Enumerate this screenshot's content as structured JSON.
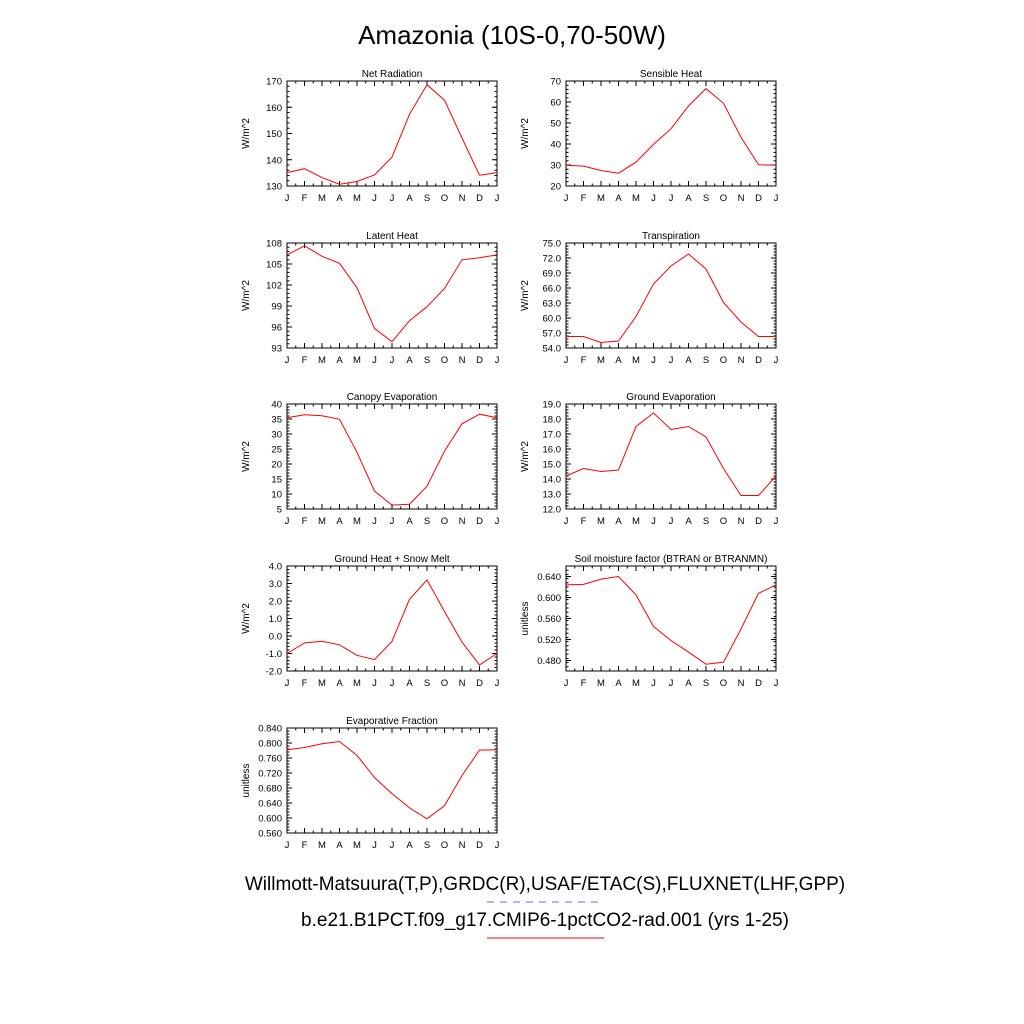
{
  "title": "Amazonia (10S-0,70-50W)",
  "footer": {
    "line1": "Willmott-Matsuura(T,P),GRDC(R),USAF/ETAC(S),FLUXNET(LHF,GPP)",
    "line2": "b.e21.B1PCT.f09_g17.CMIP6-1pctCO2-rad.001 (yrs 1-25)",
    "line1_legend_color": "#6b6bff",
    "line2_legend_color": "#ff0000"
  },
  "colors": {
    "series": "#ff0000",
    "axis": "#000000"
  },
  "chart_data": [
    {
      "type": "line",
      "title": "Net Radiation",
      "ylabel": "W/m^2",
      "categories": [
        "J",
        "F",
        "M",
        "A",
        "M",
        "J",
        "J",
        "A",
        "S",
        "O",
        "N",
        "D",
        "J"
      ],
      "ylim": [
        130,
        170
      ],
      "yticks": [
        "130",
        "140",
        "150",
        "160",
        "170"
      ],
      "values": [
        135.1,
        136.6,
        133.2,
        130.7,
        131.7,
        134.2,
        141,
        157.3,
        168.6,
        162.7,
        148.3,
        134.1,
        135.1
      ]
    },
    {
      "type": "line",
      "title": "Sensible Heat",
      "ylabel": "W/m^2",
      "categories": [
        "J",
        "F",
        "M",
        "A",
        "M",
        "J",
        "J",
        "A",
        "S",
        "O",
        "N",
        "D",
        "J"
      ],
      "ylim": [
        20,
        70
      ],
      "yticks": [
        "20",
        "30",
        "40",
        "50",
        "60",
        "70"
      ],
      "values": [
        29.9,
        29.5,
        27.4,
        26.1,
        31.4,
        39.8,
        47.3,
        58.1,
        66.4,
        59.4,
        43.2,
        30.1,
        29.9
      ]
    },
    {
      "type": "line",
      "title": "Latent Heat",
      "ylabel": "W/m^2",
      "categories": [
        "J",
        "F",
        "M",
        "A",
        "M",
        "J",
        "J",
        "A",
        "S",
        "O",
        "N",
        "D",
        "J"
      ],
      "ylim": [
        93,
        108
      ],
      "yticks": [
        "93",
        "96",
        "99",
        "102",
        "105",
        "108"
      ],
      "values": [
        106.3,
        107.6,
        106.1,
        105.1,
        101.6,
        95.8,
        93.9,
        96.9,
        98.9,
        101.5,
        105.6,
        105.9,
        106.3
      ]
    },
    {
      "type": "line",
      "title": "Transpiration",
      "ylabel": "W/m^2",
      "categories": [
        "J",
        "F",
        "M",
        "A",
        "M",
        "J",
        "J",
        "A",
        "S",
        "O",
        "N",
        "D",
        "J"
      ],
      "ylim": [
        54,
        75
      ],
      "yticks": [
        "54.0",
        "57.0",
        "60.0",
        "63.0",
        "66.0",
        "69.0",
        "72.0",
        "75.0"
      ],
      "values": [
        56.3,
        56.3,
        55.1,
        55.4,
        60.3,
        66.8,
        70.4,
        72.8,
        69.8,
        63.1,
        59.2,
        56.3,
        56.3
      ]
    },
    {
      "type": "line",
      "title": "Canopy Evaporation",
      "ylabel": "W/m^2",
      "categories": [
        "J",
        "F",
        "M",
        "A",
        "M",
        "J",
        "J",
        "A",
        "S",
        "O",
        "N",
        "D",
        "J"
      ],
      "ylim": [
        5,
        40
      ],
      "yticks": [
        "5",
        "10",
        "15",
        "20",
        "25",
        "30",
        "35",
        "40"
      ],
      "values": [
        35.4,
        36.4,
        36.1,
        34.9,
        23.9,
        11,
        6.3,
        6.6,
        12.6,
        24.3,
        33.4,
        36.6,
        35.4
      ]
    },
    {
      "type": "line",
      "title": "Ground Evaporation",
      "ylabel": "W/m^2",
      "categories": [
        "J",
        "F",
        "M",
        "A",
        "M",
        "J",
        "J",
        "A",
        "S",
        "O",
        "N",
        "D",
        "J"
      ],
      "ylim": [
        12,
        19
      ],
      "yticks": [
        "12.0",
        "13.0",
        "14.0",
        "15.0",
        "16.0",
        "17.0",
        "18.0",
        "19.0"
      ],
      "values": [
        14.2,
        14.7,
        14.5,
        14.6,
        17.5,
        18.4,
        17.3,
        17.5,
        16.8,
        14.7,
        12.9,
        12.9,
        14.2
      ]
    },
    {
      "type": "line",
      "title": "Ground Heat + Snow Melt",
      "ylabel": "W/m^2",
      "categories": [
        "J",
        "F",
        "M",
        "A",
        "M",
        "J",
        "J",
        "A",
        "S",
        "O",
        "N",
        "D",
        "J"
      ],
      "ylim": [
        -2,
        4
      ],
      "yticks": [
        "-2.0",
        "-1.0",
        "0.0",
        "1.0",
        "2.0",
        "3.0",
        "4.0"
      ],
      "values": [
        -1.0,
        -0.4,
        -0.3,
        -0.5,
        -1.1,
        -1.35,
        -0.3,
        2.1,
        3.2,
        1.4,
        -0.35,
        -1.65,
        -1.0
      ]
    },
    {
      "type": "line",
      "title": "Soil moisture factor (BTRAN or BTRANMN)",
      "ylabel": "unitless",
      "categories": [
        "J",
        "F",
        "M",
        "A",
        "M",
        "J",
        "J",
        "A",
        "S",
        "O",
        "N",
        "D",
        "J"
      ],
      "ylim": [
        0.46,
        0.66
      ],
      "yticks": [
        "0.480",
        "0.520",
        "0.560",
        "0.600",
        "0.640"
      ],
      "ytick_values": [
        0.48,
        0.52,
        0.56,
        0.6,
        0.64
      ],
      "values": [
        0.624,
        0.625,
        0.635,
        0.64,
        0.605,
        0.545,
        0.518,
        0.496,
        0.473,
        0.477,
        0.54,
        0.608,
        0.624
      ]
    },
    {
      "type": "line",
      "title": "Evaporative Fraction",
      "ylabel": "unitless",
      "categories": [
        "J",
        "F",
        "M",
        "A",
        "M",
        "J",
        "J",
        "A",
        "S",
        "O",
        "N",
        "D",
        "J"
      ],
      "ylim": [
        0.56,
        0.84
      ],
      "yticks": [
        "0.560",
        "0.600",
        "0.640",
        "0.680",
        "0.720",
        "0.760",
        "0.800",
        "0.840"
      ],
      "values": [
        0.782,
        0.788,
        0.798,
        0.804,
        0.767,
        0.708,
        0.665,
        0.627,
        0.598,
        0.633,
        0.713,
        0.781,
        0.782
      ]
    }
  ]
}
